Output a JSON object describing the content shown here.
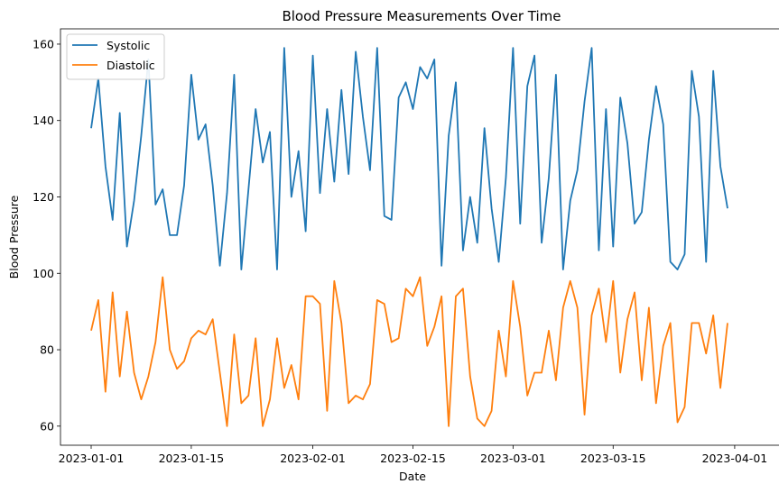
{
  "chart_data": {
    "type": "line",
    "title": "Blood Pressure Measurements Over Time",
    "xlabel": "Date",
    "ylabel": "Blood Pressure",
    "x_start": "2023-01-01",
    "x_ticks": [
      "2023-01-01",
      "2023-01-15",
      "2023-02-01",
      "2023-02-15",
      "2023-03-01",
      "2023-03-15",
      "2023-04-01"
    ],
    "ylim": [
      55,
      164
    ],
    "y_ticks": [
      60,
      80,
      100,
      120,
      140,
      160
    ],
    "grid": false,
    "legend_position": "top-left",
    "series": [
      {
        "name": "Systolic",
        "color": "#1f77b4",
        "values": [
          138,
          151,
          128,
          114,
          142,
          107,
          119,
          136,
          156,
          118,
          122,
          110,
          110,
          123,
          152,
          135,
          139,
          123,
          102,
          121,
          152,
          101,
          122,
          143,
          129,
          137,
          101,
          159,
          120,
          132,
          111,
          157,
          121,
          143,
          124,
          148,
          126,
          158,
          141,
          127,
          159,
          115,
          114,
          146,
          150,
          143,
          154,
          151,
          156,
          102,
          136,
          150,
          106,
          120,
          108,
          138,
          117,
          103,
          125,
          159,
          113,
          149,
          157,
          108,
          125,
          152,
          101,
          119,
          127,
          145,
          159,
          106,
          143,
          107,
          146,
          134,
          113,
          116,
          135,
          149,
          139,
          103,
          101,
          105,
          153,
          141,
          103,
          153,
          128,
          117
        ]
      },
      {
        "name": "Diastolic",
        "color": "#ff7f0e",
        "values": [
          85,
          93,
          69,
          95,
          73,
          90,
          74,
          67,
          73,
          82,
          99,
          80,
          75,
          77,
          83,
          85,
          84,
          88,
          74,
          60,
          84,
          66,
          68,
          83,
          60,
          67,
          83,
          70,
          76,
          67,
          94,
          94,
          92,
          64,
          98,
          87,
          66,
          68,
          67,
          71,
          93,
          92,
          82,
          83,
          96,
          94,
          99,
          81,
          86,
          94,
          60,
          94,
          96,
          73,
          62,
          60,
          64,
          85,
          73,
          98,
          86,
          68,
          74,
          74,
          85,
          72,
          91,
          98,
          91,
          63,
          89,
          96,
          82,
          98,
          74,
          88,
          95,
          72,
          91,
          66,
          81,
          87,
          61,
          65,
          87,
          87,
          79,
          89,
          70,
          87
        ]
      }
    ]
  }
}
